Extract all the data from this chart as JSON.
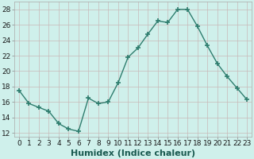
{
  "x": [
    0,
    1,
    2,
    3,
    4,
    5,
    6,
    7,
    8,
    9,
    10,
    11,
    12,
    13,
    14,
    15,
    16,
    17,
    18,
    19,
    20,
    21,
    22,
    23
  ],
  "y": [
    17.5,
    15.8,
    15.3,
    14.8,
    13.2,
    12.5,
    12.2,
    16.5,
    15.8,
    16.0,
    18.5,
    21.8,
    23.0,
    24.8,
    26.5,
    26.3,
    28.0,
    28.0,
    25.8,
    23.3,
    21.0,
    19.3,
    17.8,
    16.3
  ],
  "xlabel": "Humidex (Indice chaleur)",
  "xlim": [
    -0.5,
    23.5
  ],
  "ylim": [
    11.5,
    29
  ],
  "yticks": [
    12,
    14,
    16,
    18,
    20,
    22,
    24,
    26,
    28
  ],
  "xticks": [
    0,
    1,
    2,
    3,
    4,
    5,
    6,
    7,
    8,
    9,
    10,
    11,
    12,
    13,
    14,
    15,
    16,
    17,
    18,
    19,
    20,
    21,
    22,
    23
  ],
  "xtick_labels": [
    "0",
    "1",
    "2",
    "3",
    "4",
    "5",
    "6",
    "7",
    "8",
    "9",
    "10",
    "11",
    "12",
    "13",
    "14",
    "15",
    "16",
    "17",
    "18",
    "19",
    "20",
    "21",
    "22",
    "23"
  ],
  "line_color": "#2e7d6e",
  "marker": "+",
  "bg_color": "#cff0eb",
  "grid_color_major": "#c8b8b8",
  "grid_color_minor": "#ddd0d0",
  "xlabel_fontsize": 8,
  "tick_fontsize": 6.5,
  "linewidth": 1.0,
  "markersize": 4,
  "markeredgewidth": 1.2
}
